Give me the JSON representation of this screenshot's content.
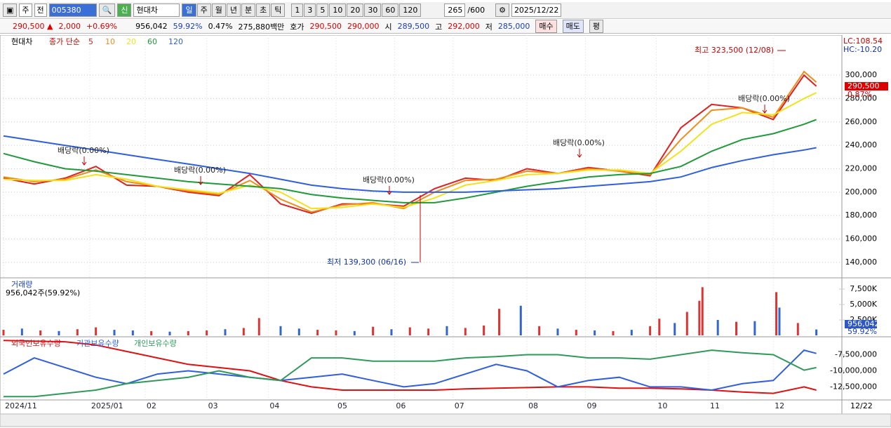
{
  "toolbar": {
    "period_type": "주",
    "prev": "전",
    "code": "005380",
    "badge": "신",
    "name": "현대차",
    "periods": [
      "일",
      "주",
      "월",
      "년",
      "분",
      "초",
      "틱"
    ],
    "intervals": [
      "1",
      "3",
      "5",
      "10",
      "20",
      "30",
      "60",
      "120"
    ],
    "count": "265",
    "count_max": "/600",
    "date": "2025/12/22"
  },
  "quote": {
    "price": "290,500 ▲",
    "change": "2,000",
    "change_pct": "+0.69%",
    "volume": "956,042",
    "volume_pct": "59.92%",
    "turnover_pct": "0.47%",
    "amount": "275,880백만",
    "ask_label": "호가",
    "ask": "290,500",
    "bid": "290,000",
    "open_label": "시",
    "open": "289,500",
    "high_label": "고",
    "high": "292,000",
    "low_label": "저",
    "low": "285,000",
    "buy": "매수",
    "sell": "매도",
    "avg": "평"
  },
  "chart_data": [
    {
      "type": "line",
      "symbol": "현대차",
      "legend_prefix": "종가 단순",
      "grid": true,
      "x": [
        0,
        10,
        20,
        30,
        40,
        50,
        60,
        70,
        80,
        90,
        100,
        110,
        120,
        130,
        140,
        150,
        160,
        170,
        180,
        190,
        200,
        210,
        220,
        230,
        240,
        250,
        260,
        264
      ],
      "xlim": [
        0,
        265
      ],
      "ylim": [
        126800,
        333000
      ],
      "yticks": [
        {
          "value": 140000,
          "label": "140,000"
        },
        {
          "value": 160000,
          "label": "160,000"
        },
        {
          "value": 180000,
          "label": "180,000"
        },
        {
          "value": 200000,
          "label": "200,000"
        },
        {
          "value": 220000,
          "label": "220,000"
        },
        {
          "value": 240000,
          "label": "240,000"
        },
        {
          "value": 260000,
          "label": "260,000"
        },
        {
          "value": 280000,
          "label": "280,000"
        },
        {
          "value": 300000,
          "label": "300,000"
        }
      ],
      "series": [
        {
          "name": "5",
          "color": "#e02020",
          "values": [
            212000,
            207000,
            212000,
            222000,
            206000,
            205000,
            200000,
            197000,
            215000,
            190000,
            182000,
            190000,
            190000,
            188000,
            203000,
            212000,
            210000,
            220000,
            216000,
            221000,
            218000,
            214000,
            255000,
            275000,
            272000,
            262000,
            300000,
            290500
          ]
        },
        {
          "name": "10",
          "color": "#f08c1a",
          "values": [
            213000,
            209000,
            211000,
            219000,
            209000,
            205000,
            201000,
            198000,
            210000,
            194000,
            183000,
            189000,
            191000,
            186000,
            200000,
            210000,
            211000,
            218000,
            216000,
            220000,
            218000,
            215000,
            245000,
            270000,
            272000,
            264000,
            303000,
            294000
          ]
        },
        {
          "name": "20",
          "color": "#f2e21a",
          "values": [
            211000,
            210000,
            210000,
            215000,
            211000,
            205000,
            202000,
            199000,
            206000,
            200000,
            186000,
            187000,
            190000,
            187000,
            195000,
            206000,
            210000,
            215000,
            216000,
            219000,
            219000,
            216000,
            235000,
            258000,
            268000,
            266000,
            280000,
            285000
          ]
        },
        {
          "name": "60",
          "color": "#1f9a3a",
          "values": [
            233000,
            226000,
            220000,
            218000,
            215000,
            212000,
            209000,
            207000,
            205000,
            203000,
            198000,
            195000,
            193000,
            191000,
            191000,
            195000,
            200000,
            205000,
            209000,
            213000,
            215000,
            216000,
            222000,
            235000,
            245000,
            250000,
            258000,
            262000
          ]
        },
        {
          "name": "120",
          "color": "#2f5fe0",
          "values": [
            248000,
            244000,
            240000,
            236000,
            232000,
            228000,
            224000,
            220000,
            216000,
            211000,
            206000,
            203000,
            201000,
            200000,
            200000,
            200000,
            201000,
            202000,
            203000,
            205000,
            207000,
            209000,
            213000,
            221000,
            227000,
            232000,
            236000,
            238000
          ]
        }
      ],
      "high_label": "최고 323,500 (12/08)",
      "low_label": "최저 139,300 (06/16)",
      "dividend_labels": [
        "배당락(0.00%)",
        "배당락(0.00%)",
        "배당락(0.00%)",
        "배당락(0.00%)",
        "배당락(0.00%)"
      ],
      "lc": "LC:108.54",
      "hc": "HC:-10.20",
      "last_price": "290,500",
      "last_pct": "0.87%"
    },
    {
      "type": "bar",
      "title": "거래량",
      "subtitle": "956,042주(59.92%)",
      "last_volume": "956,042",
      "last_pct": "59.92%",
      "x": [
        0,
        6,
        12,
        18,
        24,
        30,
        36,
        42,
        48,
        54,
        60,
        66,
        72,
        78,
        83,
        90,
        96,
        102,
        108,
        114,
        120,
        126,
        132,
        138,
        144,
        150,
        156,
        161,
        168,
        174,
        180,
        186,
        192,
        198,
        204,
        210,
        213,
        218,
        222,
        226,
        227,
        232,
        238,
        244,
        251,
        252,
        258,
        264
      ],
      "values": [
        900000,
        1100000,
        800000,
        700000,
        1000000,
        1300000,
        900000,
        800000,
        700000,
        600000,
        700000,
        800000,
        1000000,
        1200000,
        2800000,
        1500000,
        1100000,
        900000,
        800000,
        700000,
        1400000,
        1000000,
        1300000,
        1100000,
        1500000,
        1200000,
        1600000,
        4300000,
        4800000,
        1500000,
        1100000,
        900000,
        800000,
        700000,
        900000,
        1500000,
        2700000,
        2000000,
        3800000,
        5600000,
        7800000,
        2500000,
        2200000,
        2300000,
        7000000,
        4500000,
        2000000,
        956042
      ],
      "colors": [
        "#d33",
        "#36c",
        "#d33",
        "#36c",
        "#d33",
        "#d33",
        "#36c",
        "#36c",
        "#d33",
        "#36c",
        "#d33",
        "#d33",
        "#36c",
        "#d33",
        "#d33",
        "#36c",
        "#36c",
        "#d33",
        "#d33",
        "#36c",
        "#d33",
        "#36c",
        "#d33",
        "#d33",
        "#36c",
        "#d33",
        "#d33",
        "#d33",
        "#36c",
        "#d33",
        "#36c",
        "#d33",
        "#36c",
        "#d33",
        "#36c",
        "#d33",
        "#d33",
        "#36c",
        "#d33",
        "#d33",
        "#d33",
        "#36c",
        "#d33",
        "#36c",
        "#d33",
        "#36c",
        "#d33",
        "#36c"
      ],
      "xlim": [
        0,
        265
      ],
      "ylim": [
        0,
        8860000
      ],
      "yticks": [
        {
          "value": 2500000,
          "label": "2,500K"
        },
        {
          "value": 5000000,
          "label": "5,000K"
        },
        {
          "value": 7500000,
          "label": "7,500K"
        }
      ]
    },
    {
      "type": "line",
      "x": [
        0,
        10,
        20,
        30,
        40,
        50,
        60,
        70,
        80,
        90,
        100,
        110,
        120,
        130,
        140,
        150,
        160,
        170,
        180,
        190,
        200,
        210,
        220,
        230,
        240,
        250,
        260,
        264
      ],
      "xlim": [
        0,
        265
      ],
      "ylim": [
        -14520000,
        -5160000
      ],
      "yticks": [
        {
          "value": -12500000,
          "label": "-12,500,000"
        },
        {
          "value": -10000000,
          "label": "-10,000,000"
        },
        {
          "value": -7500000,
          "label": "-7,500,000"
        }
      ],
      "xticks": [
        {
          "value": 0,
          "label": "2024/11"
        },
        {
          "value": 28,
          "label": "2025/01"
        },
        {
          "value": 46,
          "label": "02"
        },
        {
          "value": 66,
          "label": "03"
        },
        {
          "value": 86,
          "label": "04"
        },
        {
          "value": 108,
          "label": "05"
        },
        {
          "value": 127,
          "label": "06"
        },
        {
          "value": 146,
          "label": "07"
        },
        {
          "value": 170,
          "label": "08"
        },
        {
          "value": 189,
          "label": "09"
        },
        {
          "value": 212,
          "label": "10"
        },
        {
          "value": 229,
          "label": "11"
        },
        {
          "value": 250,
          "label": "12"
        }
      ],
      "end_label": "12/22",
      "series": [
        {
          "name": "외국인보유수량",
          "color": "#e01010",
          "values": [
            -5300000,
            -5400000,
            -5500000,
            -6000000,
            -7000000,
            -8000000,
            -9000000,
            -9500000,
            -10000000,
            -11500000,
            -12500000,
            -13000000,
            -13000000,
            -13000000,
            -13000000,
            -12800000,
            -12700000,
            -12600000,
            -12500000,
            -12500000,
            -12700000,
            -12700000,
            -12800000,
            -13000000,
            -13300000,
            -13500000,
            -12500000,
            -13000000
          ]
        },
        {
          "name": "기관보유수량",
          "color": "#2f5fe0",
          "values": [
            -10500000,
            -8000000,
            -9500000,
            -11000000,
            -12000000,
            -10500000,
            -10000000,
            -10500000,
            -11000000,
            -11500000,
            -11000000,
            -10500000,
            -11500000,
            -12500000,
            -12000000,
            -10500000,
            -9000000,
            -10000000,
            -12500000,
            -11500000,
            -11000000,
            -12500000,
            -12500000,
            -13000000,
            -12000000,
            -11500000,
            -6800000,
            -7300000
          ]
        },
        {
          "name": "개인보유수량",
          "color": "#2e9a5a",
          "values": [
            -14000000,
            -14000000,
            -13500000,
            -13000000,
            -12000000,
            -11500000,
            -11000000,
            -10000000,
            -11000000,
            -11500000,
            -8000000,
            -8000000,
            -8500000,
            -8500000,
            -8500000,
            -8000000,
            -7800000,
            -7500000,
            -7500000,
            -8000000,
            -8000000,
            -8200000,
            -7500000,
            -6800000,
            -7200000,
            -7500000,
            -9900000,
            -9500000
          ]
        }
      ]
    }
  ]
}
